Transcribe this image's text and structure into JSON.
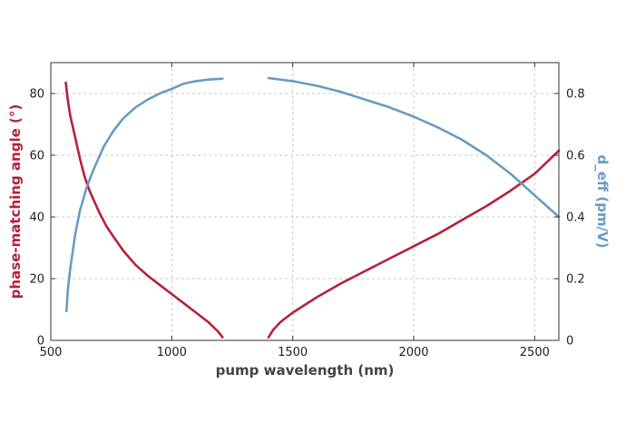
{
  "chart_data": {
    "type": "line",
    "xlabel": "pump wavelength (nm)",
    "ylabel_left": "phase-matching angle (°)",
    "ylabel_right": "d_eff (pm/V)",
    "xlim": [
      500,
      2600
    ],
    "ylim_left": [
      0,
      90
    ],
    "ylim_right": [
      0,
      0.9
    ],
    "x_ticks": [
      "500",
      "1000",
      "1500",
      "2000",
      "2500"
    ],
    "y_left_ticks": [
      "0",
      "20",
      "40",
      "60",
      "80"
    ],
    "y_right_ticks": [
      "0",
      "0.2",
      "0.4",
      "0.6",
      "0.8"
    ],
    "grid": true,
    "colors": {
      "angle": "#b5213a",
      "deff": "#6a9ac4",
      "axis": "#333333"
    },
    "series": [
      {
        "axis": "left",
        "color": "#b5213a",
        "segments": [
          [
            [
              562,
              83.5
            ],
            [
              570,
              78
            ],
            [
              580,
              73
            ],
            [
              600,
              66
            ],
            [
              620,
              59
            ],
            [
              640,
              53
            ],
            [
              660,
              48.5
            ],
            [
              680,
              45
            ],
            [
              700,
              41.5
            ],
            [
              730,
              37
            ],
            [
              760,
              33.5
            ],
            [
              800,
              29
            ],
            [
              850,
              24.5
            ],
            [
              900,
              21
            ],
            [
              950,
              18
            ],
            [
              1000,
              15
            ],
            [
              1050,
              12
            ],
            [
              1100,
              9
            ],
            [
              1150,
              6
            ],
            [
              1190,
              3
            ],
            [
              1210,
              1
            ]
          ],
          [
            [
              1400,
              1
            ],
            [
              1420,
              3.5
            ],
            [
              1450,
              6
            ],
            [
              1500,
              9
            ],
            [
              1600,
              14
            ],
            [
              1700,
              18.5
            ],
            [
              1800,
              22.5
            ],
            [
              1900,
              26.5
            ],
            [
              2000,
              30.5
            ],
            [
              2100,
              34.5
            ],
            [
              2200,
              39
            ],
            [
              2300,
              43.5
            ],
            [
              2400,
              48.5
            ],
            [
              2500,
              54
            ],
            [
              2600,
              61.5
            ]
          ]
        ]
      },
      {
        "axis": "right",
        "color": "#6a9ac4",
        "segments": [
          [
            [
              565,
              0.095
            ],
            [
              570,
              0.16
            ],
            [
              580,
              0.23
            ],
            [
              600,
              0.34
            ],
            [
              620,
              0.42
            ],
            [
              650,
              0.5
            ],
            [
              680,
              0.56
            ],
            [
              720,
              0.63
            ],
            [
              760,
              0.68
            ],
            [
              800,
              0.72
            ],
            [
              850,
              0.755
            ],
            [
              900,
              0.78
            ],
            [
              950,
              0.8
            ],
            [
              1000,
              0.815
            ],
            [
              1050,
              0.832
            ],
            [
              1100,
              0.84
            ],
            [
              1150,
              0.845
            ],
            [
              1210,
              0.848
            ]
          ],
          [
            [
              1400,
              0.85
            ],
            [
              1500,
              0.84
            ],
            [
              1600,
              0.825
            ],
            [
              1700,
              0.805
            ],
            [
              1800,
              0.78
            ],
            [
              1900,
              0.755
            ],
            [
              2000,
              0.725
            ],
            [
              2100,
              0.69
            ],
            [
              2200,
              0.65
            ],
            [
              2300,
              0.6
            ],
            [
              2400,
              0.54
            ],
            [
              2500,
              0.47
            ],
            [
              2600,
              0.4
            ]
          ]
        ]
      }
    ]
  }
}
